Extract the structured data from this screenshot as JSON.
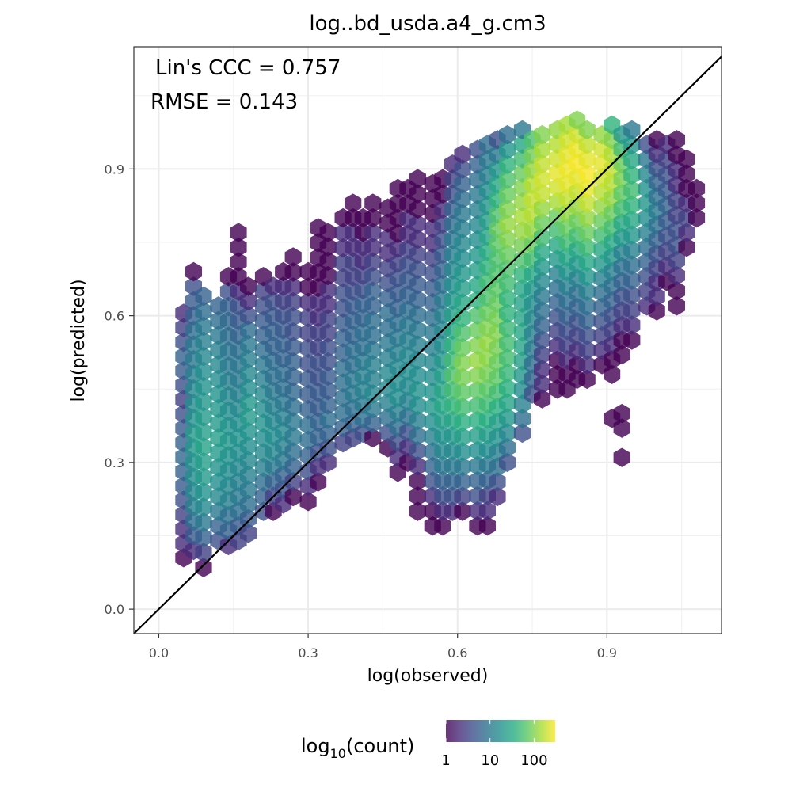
{
  "chart_data": {
    "type": "hexbin",
    "title": "log..bd_usda.a4_g.cm3",
    "xlabel": "log(observed)",
    "ylabel": "log(predicted)",
    "xlim": [
      -0.05,
      1.13
    ],
    "ylim": [
      -0.05,
      1.15
    ],
    "x_ticks": [
      0.0,
      0.3,
      0.6,
      0.9
    ],
    "x_tick_labels": [
      "0.0",
      "0.3",
      "0.6",
      "0.9"
    ],
    "y_ticks": [
      0.0,
      0.3,
      0.6,
      0.9
    ],
    "y_tick_labels": [
      "0.0",
      "0.3",
      "0.6",
      "0.9"
    ],
    "grid": true,
    "reference_line": {
      "type": "identity",
      "color": "#000000"
    },
    "annotations": [
      {
        "text": "Lin's CCC = 0.757"
      },
      {
        "text": "RMSE = 0.143"
      }
    ],
    "legend": {
      "placement": "bottom",
      "title_main": "log",
      "title_sub": "10",
      "title_rest": "(count)",
      "scale": "log10",
      "tick_labels": [
        "1",
        "10",
        "100"
      ],
      "tick_values": [
        1,
        10,
        100
      ],
      "max_count": 300,
      "colormap": "viridis"
    },
    "hex_bins": {
      "dx": 0.036,
      "dy": 0.03,
      "columns": [
        {
          "x": 0.05,
          "y0": 0.105,
          "y1": 0.605,
          "v": [
            1,
            2,
            2,
            3,
            4,
            5,
            6,
            7,
            6,
            5,
            4,
            3,
            4,
            5,
            6,
            4,
            3,
            2
          ]
        },
        {
          "x": 0.07,
          "y0": 0.12,
          "y1": 0.69,
          "v": [
            2,
            5,
            8,
            12,
            14,
            16,
            18,
            20,
            22,
            18,
            16,
            14,
            12,
            10,
            10,
            8,
            6,
            5,
            4,
            1
          ]
        },
        {
          "x": 0.09,
          "y0": 0.085,
          "y1": 0.64,
          "v": [
            1,
            3,
            6,
            10,
            14,
            18,
            22,
            24,
            26,
            24,
            22,
            20,
            18,
            16,
            14,
            12,
            10,
            8,
            6
          ]
        },
        {
          "x": 0.12,
          "y0": 0.14,
          "y1": 0.62,
          "v": [
            4,
            6,
            10,
            14,
            16,
            18,
            22,
            24,
            22,
            20,
            18,
            16,
            14,
            12,
            10,
            8,
            6
          ]
        },
        {
          "x": 0.14,
          "y0": 0.13,
          "y1": 0.68,
          "v": [
            2,
            6,
            8,
            12,
            14,
            16,
            18,
            20,
            18,
            16,
            14,
            12,
            10,
            9,
            8,
            7,
            6,
            4,
            1
          ]
        },
        {
          "x": 0.16,
          "y0": 0.14,
          "y1": 0.77,
          "v": [
            3,
            5,
            8,
            10,
            12,
            14,
            16,
            18,
            16,
            14,
            12,
            10,
            9,
            8,
            6,
            5,
            4,
            2,
            1,
            1,
            1,
            1
          ]
        },
        {
          "x": 0.18,
          "y0": 0.155,
          "y1": 0.66,
          "v": [
            3,
            5,
            8,
            10,
            12,
            14,
            16,
            18,
            22,
            20,
            16,
            14,
            12,
            10,
            8,
            4,
            2,
            1
          ]
        },
        {
          "x": 0.21,
          "y0": 0.2,
          "y1": 0.68,
          "v": [
            4,
            6,
            8,
            12,
            14,
            16,
            18,
            16,
            14,
            12,
            10,
            8,
            6,
            5,
            4,
            3,
            1
          ]
        },
        {
          "x": 0.23,
          "y0": 0.2,
          "y1": 0.66,
          "v": [
            1,
            3,
            6,
            10,
            14,
            16,
            14,
            12,
            10,
            8,
            8,
            6,
            6,
            5,
            4,
            2
          ]
        },
        {
          "x": 0.25,
          "y0": 0.215,
          "y1": 0.69,
          "v": [
            2,
            4,
            6,
            10,
            12,
            14,
            12,
            10,
            8,
            8,
            6,
            6,
            5,
            4,
            3,
            2,
            1
          ]
        },
        {
          "x": 0.27,
          "y0": 0.23,
          "y1": 0.72,
          "v": [
            1,
            3,
            6,
            8,
            10,
            10,
            8,
            7,
            6,
            6,
            5,
            4,
            4,
            3,
            2,
            1,
            1
          ]
        },
        {
          "x": 0.3,
          "y0": 0.22,
          "y1": 0.69,
          "v": [
            1,
            2,
            4,
            6,
            8,
            8,
            6,
            5,
            5,
            4,
            4,
            3,
            3,
            2,
            1,
            1
          ]
        },
        {
          "x": 0.32,
          "y0": 0.26,
          "y1": 0.78,
          "v": [
            1,
            2,
            4,
            6,
            6,
            5,
            5,
            4,
            4,
            3,
            3,
            2,
            2,
            1,
            1,
            1,
            1,
            1
          ]
        },
        {
          "x": 0.34,
          "y0": 0.3,
          "y1": 0.77,
          "v": [
            2,
            4,
            6,
            8,
            6,
            5,
            5,
            4,
            4,
            3,
            3,
            2,
            2,
            1,
            1,
            1,
            1
          ]
        },
        {
          "x": 0.37,
          "y0": 0.34,
          "y1": 0.8,
          "v": [
            3,
            6,
            8,
            8,
            8,
            8,
            6,
            6,
            5,
            4,
            4,
            3,
            3,
            2,
            2,
            1
          ]
        },
        {
          "x": 0.39,
          "y0": 0.35,
          "y1": 0.83,
          "v": [
            3,
            6,
            8,
            10,
            10,
            8,
            8,
            6,
            6,
            5,
            4,
            3,
            3,
            2,
            2,
            1,
            1
          ]
        },
        {
          "x": 0.41,
          "y0": 0.36,
          "y1": 0.8,
          "v": [
            4,
            8,
            10,
            12,
            12,
            10,
            8,
            8,
            6,
            6,
            4,
            3,
            2,
            2,
            1,
            1
          ]
        },
        {
          "x": 0.43,
          "y0": 0.35,
          "y1": 0.83,
          "v": [
            1,
            6,
            10,
            14,
            12,
            12,
            10,
            8,
            8,
            6,
            6,
            4,
            3,
            2,
            2,
            1,
            1
          ]
        },
        {
          "x": 0.46,
          "y0": 0.33,
          "y1": 0.82,
          "v": [
            1,
            4,
            8,
            12,
            14,
            14,
            12,
            10,
            8,
            8,
            6,
            4,
            3,
            2,
            2,
            1,
            1
          ]
        },
        {
          "x": 0.48,
          "y0": 0.28,
          "y1": 0.86,
          "v": [
            1,
            2,
            4,
            8,
            12,
            16,
            16,
            14,
            12,
            10,
            8,
            6,
            5,
            4,
            3,
            2,
            1,
            1,
            1,
            1
          ]
        },
        {
          "x": 0.5,
          "y0": 0.3,
          "y1": 0.86,
          "v": [
            1,
            2,
            4,
            8,
            12,
            14,
            16,
            14,
            12,
            10,
            8,
            6,
            5,
            4,
            3,
            2,
            2,
            1,
            1
          ]
        },
        {
          "x": 0.52,
          "y0": 0.2,
          "y1": 0.88,
          "v": [
            1,
            1,
            1,
            2,
            4,
            8,
            12,
            16,
            18,
            16,
            14,
            12,
            10,
            8,
            6,
            5,
            4,
            3,
            2,
            2,
            1,
            1,
            1
          ]
        },
        {
          "x": 0.55,
          "y0": 0.17,
          "y1": 0.87,
          "v": [
            1,
            1,
            2,
            4,
            6,
            8,
            12,
            16,
            20,
            18,
            16,
            14,
            12,
            10,
            8,
            6,
            5,
            4,
            3,
            2,
            2,
            1,
            1,
            1
          ]
        },
        {
          "x": 0.57,
          "y0": 0.17,
          "y1": 0.88,
          "v": [
            1,
            2,
            4,
            6,
            10,
            14,
            18,
            24,
            30,
            28,
            24,
            20,
            16,
            14,
            12,
            10,
            8,
            6,
            5,
            4,
            3,
            2,
            1,
            1
          ]
        },
        {
          "x": 0.59,
          "y0": 0.2,
          "y1": 0.91,
          "v": [
            2,
            4,
            6,
            10,
            14,
            20,
            28,
            40,
            50,
            60,
            50,
            40,
            30,
            24,
            20,
            16,
            14,
            12,
            10,
            8,
            6,
            4,
            3,
            2
          ]
        },
        {
          "x": 0.61,
          "y0": 0.2,
          "y1": 0.93,
          "v": [
            1,
            3,
            6,
            10,
            16,
            24,
            36,
            50,
            70,
            90,
            100,
            80,
            60,
            40,
            30,
            24,
            20,
            16,
            14,
            12,
            10,
            8,
            6,
            4,
            2
          ]
        },
        {
          "x": 0.64,
          "y0": 0.17,
          "y1": 0.94,
          "v": [
            1,
            2,
            4,
            6,
            10,
            16,
            24,
            36,
            50,
            70,
            100,
            120,
            100,
            80,
            60,
            40,
            30,
            24,
            20,
            16,
            14,
            12,
            10,
            8,
            6,
            4
          ]
        },
        {
          "x": 0.66,
          "y0": 0.17,
          "y1": 0.95,
          "v": [
            1,
            2,
            3,
            6,
            10,
            16,
            24,
            36,
            50,
            70,
            90,
            110,
            120,
            100,
            80,
            60,
            50,
            40,
            34,
            28,
            24,
            20,
            16,
            12,
            10,
            8
          ]
        },
        {
          "x": 0.68,
          "y0": 0.23,
          "y1": 0.96,
          "v": [
            2,
            4,
            8,
            12,
            18,
            24,
            36,
            50,
            70,
            80,
            90,
            100,
            90,
            80,
            70,
            60,
            60,
            70,
            80,
            60,
            40,
            30,
            20,
            10,
            4
          ]
        },
        {
          "x": 0.7,
          "y0": 0.3,
          "y1": 0.97,
          "v": [
            4,
            8,
            14,
            20,
            28,
            36,
            44,
            50,
            50,
            46,
            40,
            40,
            50,
            60,
            80,
            100,
            120,
            100,
            80,
            60,
            40,
            20,
            8
          ]
        },
        {
          "x": 0.73,
          "y0": 0.36,
          "y1": 0.98,
          "v": [
            4,
            8,
            12,
            16,
            20,
            24,
            28,
            30,
            28,
            26,
            30,
            40,
            60,
            90,
            120,
            140,
            120,
            100,
            80,
            50,
            30,
            10
          ]
        },
        {
          "x": 0.75,
          "y0": 0.44,
          "y1": 0.96,
          "v": [
            4,
            6,
            8,
            10,
            12,
            14,
            16,
            20,
            30,
            50,
            80,
            120,
            160,
            180,
            160,
            120,
            90,
            60
          ]
        },
        {
          "x": 0.77,
          "y0": 0.43,
          "y1": 0.97,
          "v": [
            1,
            2,
            2,
            3,
            4,
            6,
            8,
            10,
            14,
            20,
            30,
            50,
            80,
            120,
            180,
            200,
            180,
            140,
            100
          ]
        },
        {
          "x": 0.8,
          "y0": 0.45,
          "y1": 0.98,
          "v": [
            1,
            1,
            1,
            2,
            3,
            4,
            6,
            8,
            12,
            20,
            30,
            50,
            80,
            140,
            200,
            240,
            200,
            160,
            120
          ]
        },
        {
          "x": 0.82,
          "y0": 0.45,
          "y1": 0.99,
          "v": [
            1,
            1,
            2,
            3,
            4,
            6,
            8,
            12,
            20,
            30,
            50,
            80,
            120,
            180,
            240,
            260,
            240,
            200,
            140
          ]
        },
        {
          "x": 0.84,
          "y0": 0.47,
          "y1": 1.0,
          "v": [
            1,
            1,
            2,
            3,
            4,
            6,
            8,
            12,
            20,
            30,
            50,
            80,
            120,
            180,
            240,
            280,
            260,
            200,
            100
          ]
        },
        {
          "x": 0.86,
          "y0": 0.47,
          "y1": 0.98,
          "v": [
            1,
            2,
            3,
            4,
            6,
            8,
            12,
            20,
            30,
            50,
            80,
            120,
            180,
            240,
            280,
            240,
            180,
            100
          ]
        },
        {
          "x": 0.89,
          "y0": 0.5,
          "y1": 0.97,
          "v": [
            1,
            2,
            3,
            4,
            6,
            8,
            12,
            20,
            30,
            50,
            80,
            120,
            160,
            200,
            240,
            200,
            120
          ]
        },
        {
          "x": 0.91,
          "y0": 0.39,
          "y1": 0.99,
          "v": [
            1,
            0,
            0,
            1,
            1,
            2,
            3,
            4,
            6,
            8,
            12,
            20,
            30,
            50,
            80,
            120,
            160,
            180,
            150,
            100,
            40
          ]
        },
        {
          "x": 0.93,
          "y0": 0.31,
          "y1": 0.97,
          "v": [
            1,
            0,
            1,
            1,
            0,
            0,
            0,
            1,
            1,
            2,
            3,
            4,
            6,
            8,
            12,
            20,
            30,
            50,
            70,
            90,
            80,
            50,
            20
          ]
        },
        {
          "x": 0.95,
          "y0": 0.55,
          "y1": 0.98,
          "v": [
            1,
            2,
            3,
            4,
            6,
            8,
            12,
            20,
            30,
            40,
            50,
            40,
            30,
            20,
            10
          ]
        },
        {
          "x": 0.98,
          "y0": 0.62,
          "y1": 0.95,
          "v": [
            2,
            3,
            4,
            6,
            8,
            12,
            16,
            20,
            18,
            14,
            10,
            4
          ]
        },
        {
          "x": 1.0,
          "y0": 0.61,
          "y1": 0.96,
          "v": [
            1,
            2,
            2,
            3,
            4,
            6,
            8,
            10,
            8,
            6,
            4,
            2,
            1
          ]
        },
        {
          "x": 1.02,
          "y0": 0.67,
          "y1": 0.95,
          "v": [
            1,
            2,
            3,
            4,
            5,
            6,
            5,
            4,
            3,
            2
          ]
        },
        {
          "x": 1.04,
          "y0": 0.62,
          "y1": 0.96,
          "v": [
            1,
            1,
            2,
            3,
            4,
            4,
            3,
            3,
            2,
            2,
            1,
            1
          ]
        },
        {
          "x": 1.06,
          "y0": 0.74,
          "y1": 0.92,
          "v": [
            1,
            2,
            3,
            2,
            1,
            1,
            1
          ]
        },
        {
          "x": 1.08,
          "y0": 0.8,
          "y1": 0.86,
          "v": [
            1,
            1,
            1
          ]
        }
      ]
    }
  }
}
